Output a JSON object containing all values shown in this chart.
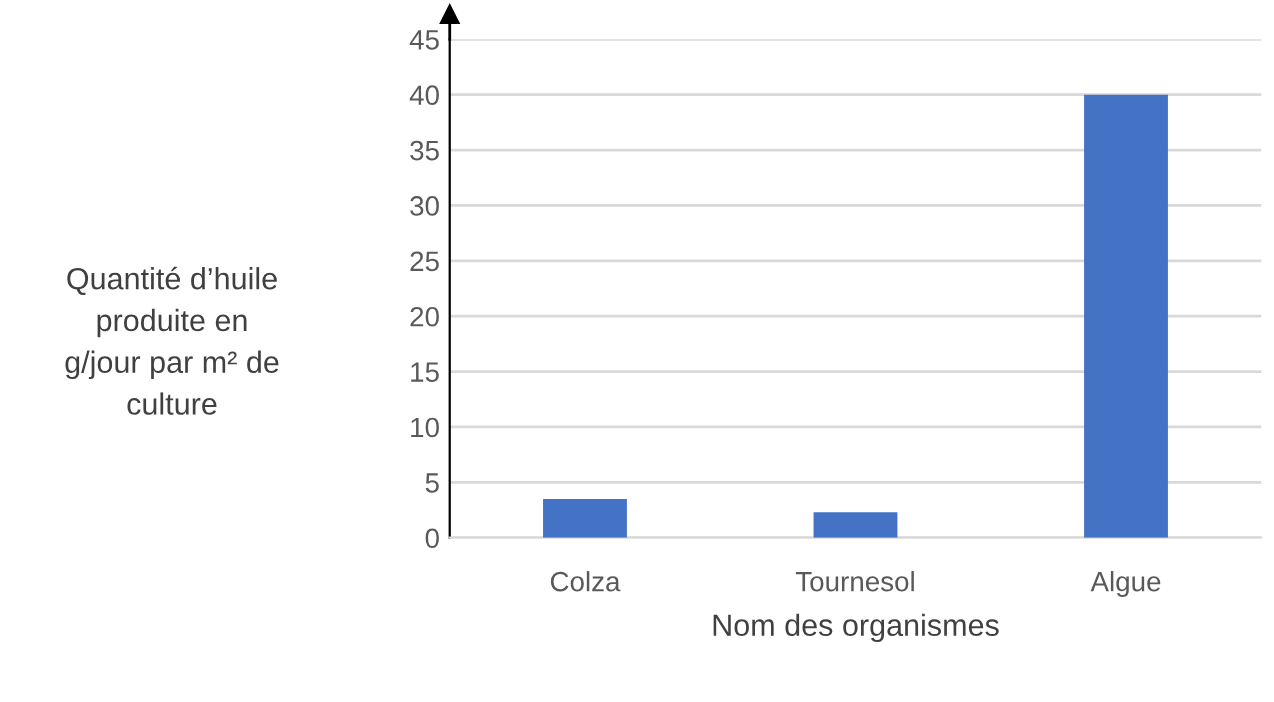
{
  "chart_data": {
    "type": "bar",
    "xlabel": "Nom des organismes",
    "ylabel": "Quantité d’huile\nproduite en\ng/jour par m² de\nculture",
    "categories": [
      "Colza",
      "Tournesol",
      "Algue"
    ],
    "values": [
      3.5,
      2.3,
      40
    ],
    "color": "#4472c4",
    "ylim": [
      0,
      45
    ],
    "yticks": [
      0,
      5,
      10,
      15,
      20,
      25,
      30,
      35,
      40,
      45
    ],
    "grid": "y",
    "legend": false
  }
}
